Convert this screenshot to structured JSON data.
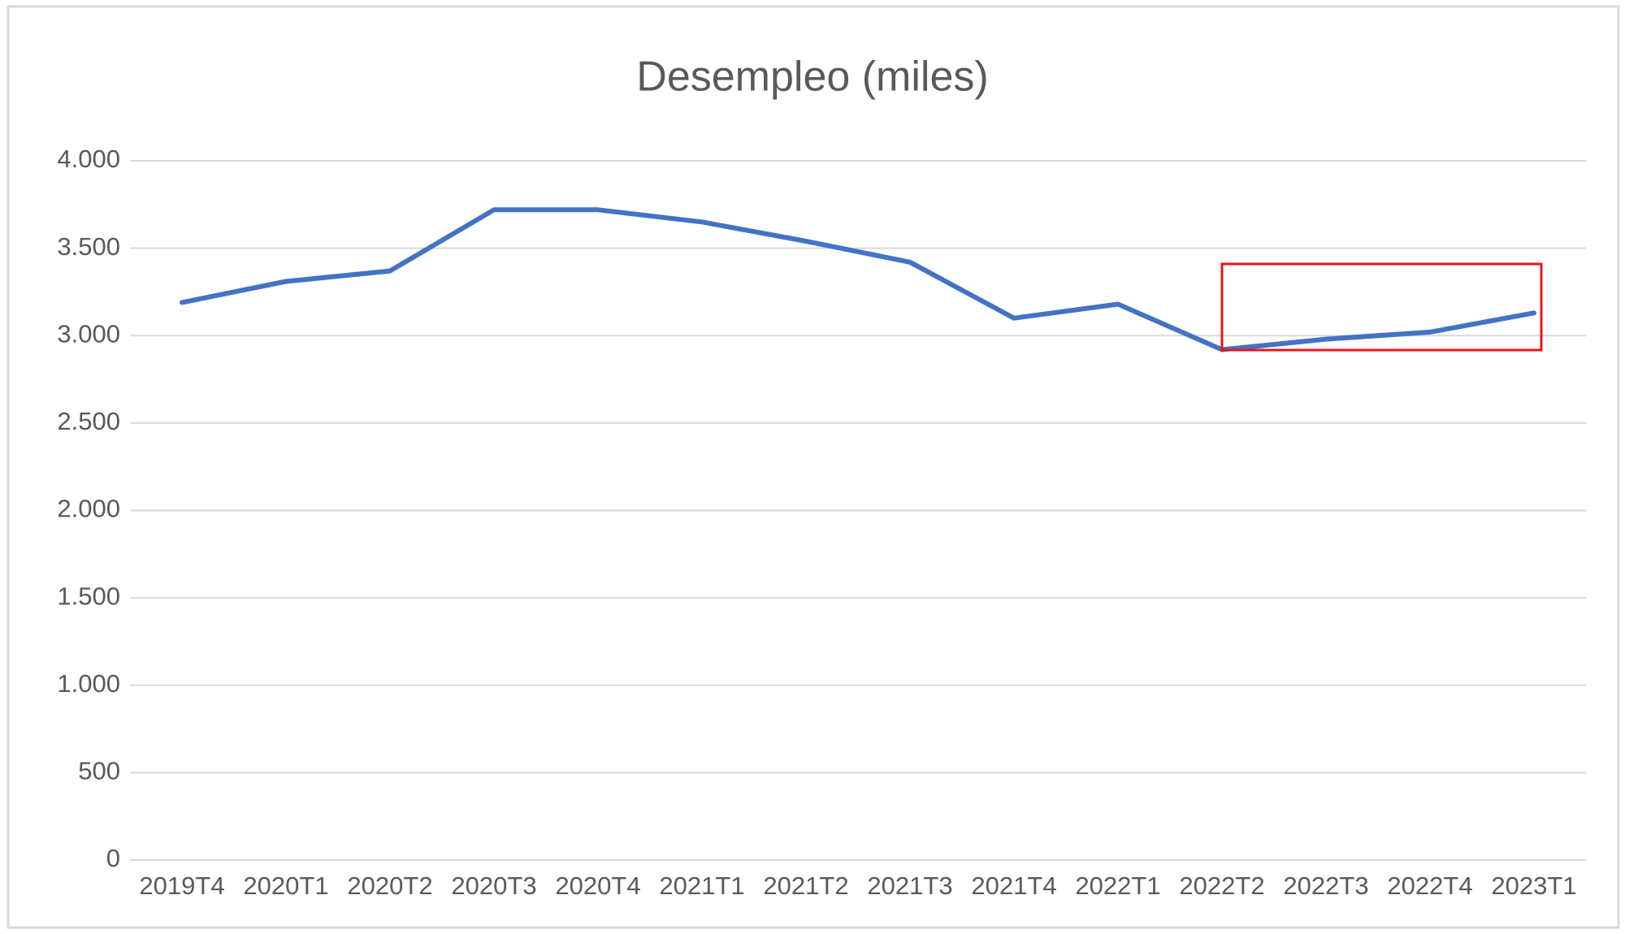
{
  "chart_data": {
    "type": "line",
    "title": "Desempleo (miles)",
    "categories": [
      "2019T4",
      "2020T1",
      "2020T2",
      "2020T3",
      "2020T4",
      "2021T1",
      "2021T2",
      "2021T3",
      "2021T4",
      "2022T1",
      "2022T2",
      "2022T3",
      "2022T4",
      "2023T1"
    ],
    "values": [
      3190,
      3310,
      3370,
      3720,
      3720,
      3650,
      3540,
      3420,
      3100,
      3180,
      2920,
      2980,
      3020,
      3130
    ],
    "color": "#4472c4",
    "ylim": [
      0,
      4000
    ],
    "yticks": [
      0,
      500,
      {
        "value": 1000,
        "label": "1.000"
      },
      {
        "value": 1500,
        "label": "1.500"
      },
      {
        "value": 2000,
        "label": "2.000"
      },
      {
        "value": 2500,
        "label": "2.500"
      },
      {
        "value": 3000,
        "label": "3.000"
      },
      {
        "value": 3500,
        "label": "3.500"
      },
      {
        "value": 4000,
        "label": "4.000"
      }
    ],
    "grid": true
  }
}
